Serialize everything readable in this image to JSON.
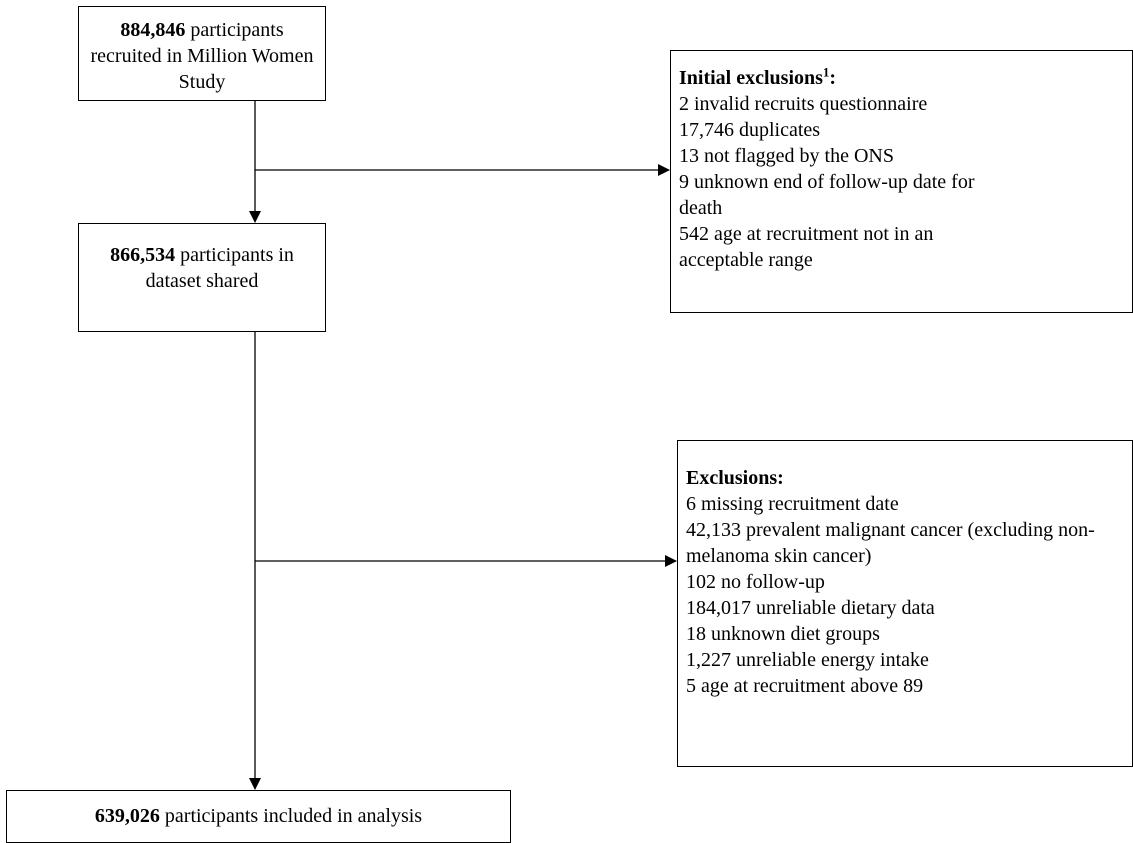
{
  "nodes": [
    {
      "count": "884,846",
      "text": "participants recruited in Million Women Study"
    },
    {
      "count": "866,534",
      "text": "participants in dataset shared"
    },
    {
      "count": "639,026",
      "text": "participants included in analysis"
    }
  ],
  "exclusions": [
    {
      "title": "Initial exclusions",
      "footnote": "1",
      "suffix": ":",
      "items": [
        "2 invalid recruits questionnaire",
        "17,746 duplicates",
        "13 not flagged by the ONS",
        "9 unknown end of follow-up date for death",
        "542 age at recruitment not in an acceptable range"
      ]
    },
    {
      "title": "Exclusions:",
      "items": [
        "6 missing recruitment date",
        "42,133 prevalent malignant cancer (excluding non-melanoma skin cancer)",
        "102 no follow-up",
        "184,017 unreliable dietary data",
        "18 unknown diet groups",
        "1,227 unreliable energy intake",
        "5 age at recruitment above 89"
      ]
    }
  ]
}
